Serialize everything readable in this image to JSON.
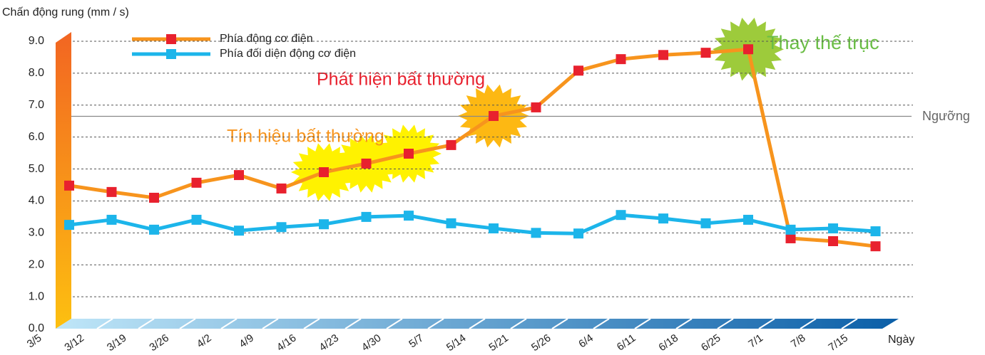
{
  "chart_data": {
    "type": "line",
    "y_axis_title": "Chấn động rung (mm / s)",
    "x_axis_title": "Ngày",
    "categories": [
      "3/5",
      "3/12",
      "3/19",
      "3/26",
      "4/2",
      "4/9",
      "4/16",
      "4/23",
      "4/30",
      "5/7",
      "5/14",
      "5/21",
      "5/26",
      "6/4",
      "6/11",
      "6/18",
      "6/25",
      "7/1",
      "7/8",
      "7/15"
    ],
    "series": [
      {
        "name": "Phía động cơ điện",
        "color": "#f7941d",
        "marker_color": "#e8212e",
        "values": [
          4.48,
          4.28,
          4.1,
          4.57,
          4.81,
          4.39,
          4.9,
          5.17,
          5.48,
          5.75,
          6.66,
          6.93,
          8.08,
          8.44,
          8.57,
          8.64,
          8.75,
          2.83,
          2.74,
          2.58
        ]
      },
      {
        "name": "Phía đối diện động cơ điện",
        "color": "#1cb5ea",
        "marker_color": "#1cb5ea",
        "values": [
          3.25,
          3.41,
          3.1,
          3.41,
          3.07,
          3.18,
          3.27,
          3.5,
          3.54,
          3.3,
          3.14,
          3.0,
          2.98,
          3.56,
          3.45,
          3.3,
          3.41,
          3.1,
          3.14,
          3.05
        ]
      }
    ],
    "ylim": [
      0,
      9
    ],
    "yticks": [
      {
        "value": 0,
        "label": "0.0"
      },
      {
        "value": 1,
        "label": "1.0"
      },
      {
        "value": 2,
        "label": "2.0"
      },
      {
        "value": 3,
        "label": "3.0"
      },
      {
        "value": 4,
        "label": "4.0"
      },
      {
        "value": 5,
        "label": "5.0"
      },
      {
        "value": 6,
        "label": "6.0"
      },
      {
        "value": 7,
        "label": "7.0"
      },
      {
        "value": 8,
        "label": "8.0"
      },
      {
        "value": 9,
        "label": "9.0"
      }
    ],
    "grid": true,
    "threshold": {
      "value": 6.65,
      "label": "Ngưỡng"
    },
    "annotations": [
      "Tín hiệu bất thường",
      "Phát hiện bất thường",
      "Thay thế trục"
    ]
  }
}
